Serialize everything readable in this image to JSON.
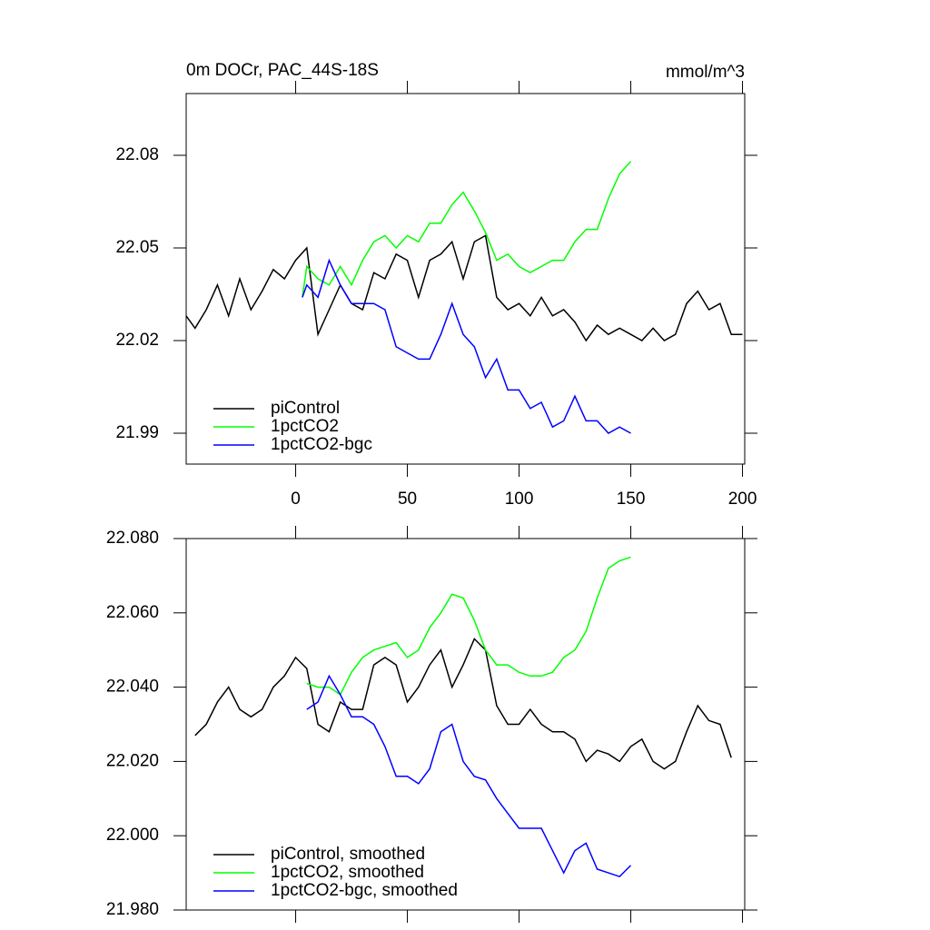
{
  "chart_data": [
    {
      "type": "line",
      "title": "0m DOCr, PAC_44S-18S",
      "units": "mmol/m^3",
      "xlim": [
        -49,
        201
      ],
      "xticks": [
        0,
        50,
        100,
        150,
        200
      ],
      "ylim": [
        21.98,
        22.1
      ],
      "yticks": [
        21.99,
        22.02,
        22.05,
        22.08
      ],
      "series": [
        {
          "name": "piControl",
          "color": "#000000",
          "x": [
            -49,
            -45,
            -40,
            -35,
            -30,
            -25,
            -20,
            -15,
            -10,
            -5,
            0,
            5,
            10,
            15,
            20,
            25,
            30,
            35,
            40,
            45,
            50,
            55,
            60,
            65,
            70,
            75,
            80,
            85,
            90,
            95,
            100,
            105,
            110,
            115,
            120,
            125,
            130,
            135,
            140,
            145,
            150,
            155,
            160,
            165,
            170,
            175,
            180,
            185,
            190,
            195,
            200
          ],
          "values": [
            22.028,
            22.024,
            22.03,
            22.038,
            22.028,
            22.04,
            22.03,
            22.036,
            22.043,
            22.04,
            22.046,
            22.05,
            22.022,
            22.03,
            22.038,
            22.032,
            22.03,
            22.042,
            22.04,
            22.048,
            22.046,
            22.034,
            22.046,
            22.048,
            22.052,
            22.04,
            22.052,
            22.054,
            22.034,
            22.03,
            22.032,
            22.028,
            22.034,
            22.028,
            22.03,
            22.026,
            22.02,
            22.025,
            22.022,
            22.024,
            22.022,
            22.02,
            22.024,
            22.02,
            22.022,
            22.032,
            22.036,
            22.03,
            22.032,
            22.022,
            22.022
          ]
        },
        {
          "name": "1pctCO2",
          "color": "#00ff00",
          "x": [
            3,
            5,
            10,
            15,
            20,
            25,
            30,
            35,
            40,
            45,
            50,
            55,
            60,
            65,
            70,
            75,
            80,
            85,
            90,
            95,
            100,
            105,
            110,
            115,
            120,
            125,
            130,
            135,
            140,
            145,
            150
          ],
          "values": [
            22.034,
            22.044,
            22.04,
            22.038,
            22.044,
            22.038,
            22.046,
            22.052,
            22.054,
            22.05,
            22.054,
            22.052,
            22.058,
            22.058,
            22.064,
            22.068,
            22.062,
            22.055,
            22.046,
            22.048,
            22.044,
            22.042,
            22.044,
            22.046,
            22.046,
            22.052,
            22.056,
            22.056,
            22.066,
            22.074,
            22.078
          ]
        },
        {
          "name": "1pctCO2-bgc",
          "color": "#0000ff",
          "x": [
            3,
            5,
            10,
            15,
            20,
            25,
            30,
            35,
            40,
            45,
            50,
            55,
            60,
            65,
            70,
            75,
            80,
            85,
            90,
            95,
            100,
            105,
            110,
            115,
            120,
            125,
            130,
            135,
            140,
            145,
            150
          ],
          "values": [
            22.034,
            22.038,
            22.034,
            22.046,
            22.038,
            22.032,
            22.032,
            22.032,
            22.03,
            22.018,
            22.016,
            22.014,
            22.014,
            22.022,
            22.032,
            22.022,
            22.018,
            22.008,
            22.014,
            22.004,
            22.004,
            21.998,
            22.0,
            21.992,
            21.994,
            22.002,
            21.994,
            21.994,
            21.99,
            21.992,
            21.99
          ]
        }
      ]
    },
    {
      "type": "line",
      "xlim": [
        -49,
        201
      ],
      "ylim": [
        21.98,
        22.08
      ],
      "yticks": [
        {
          "value": 21.98,
          "label": "21.980"
        },
        {
          "value": 22.0,
          "label": "22.000"
        },
        {
          "value": 22.02,
          "label": "22.020"
        },
        {
          "value": 22.04,
          "label": "22.040"
        },
        {
          "value": 22.06,
          "label": "22.060"
        },
        {
          "value": 22.08,
          "label": "22.080"
        }
      ],
      "series": [
        {
          "name": "piControl, smoothed",
          "color": "#000000",
          "x": [
            -45,
            -40,
            -35,
            -30,
            -25,
            -20,
            -15,
            -10,
            -5,
            0,
            5,
            10,
            15,
            20,
            25,
            30,
            35,
            40,
            45,
            50,
            55,
            60,
            65,
            70,
            75,
            80,
            85,
            90,
            95,
            100,
            105,
            110,
            115,
            120,
            125,
            130,
            135,
            140,
            145,
            150,
            155,
            160,
            165,
            170,
            175,
            180,
            185,
            190,
            195
          ],
          "values": [
            22.027,
            22.03,
            22.036,
            22.04,
            22.034,
            22.032,
            22.034,
            22.04,
            22.043,
            22.048,
            22.045,
            22.03,
            22.028,
            22.036,
            22.034,
            22.034,
            22.046,
            22.048,
            22.046,
            22.036,
            22.04,
            22.046,
            22.05,
            22.04,
            22.046,
            22.053,
            22.05,
            22.035,
            22.03,
            22.03,
            22.034,
            22.03,
            22.028,
            22.028,
            22.026,
            22.02,
            22.023,
            22.022,
            22.02,
            22.024,
            22.026,
            22.02,
            22.018,
            22.02,
            22.028,
            22.035,
            22.031,
            22.03,
            22.021
          ]
        },
        {
          "name": "1pctCO2, smoothed",
          "color": "#00ff00",
          "x": [
            5,
            10,
            15,
            20,
            25,
            30,
            35,
            40,
            45,
            50,
            55,
            60,
            65,
            70,
            75,
            80,
            85,
            90,
            95,
            100,
            105,
            110,
            115,
            120,
            125,
            130,
            135,
            140,
            145,
            150
          ],
          "values": [
            22.041,
            22.04,
            22.04,
            22.038,
            22.044,
            22.048,
            22.05,
            22.051,
            22.052,
            22.048,
            22.05,
            22.056,
            22.06,
            22.065,
            22.064,
            22.058,
            22.05,
            22.046,
            22.046,
            22.044,
            22.043,
            22.043,
            22.044,
            22.048,
            22.05,
            22.055,
            22.064,
            22.072,
            22.074,
            22.075
          ]
        },
        {
          "name": "1pctCO2-bgc, smoothed",
          "color": "#0000ff",
          "x": [
            5,
            10,
            15,
            20,
            25,
            30,
            35,
            40,
            45,
            50,
            55,
            60,
            65,
            70,
            75,
            80,
            85,
            90,
            95,
            100,
            105,
            110,
            115,
            120,
            125,
            130,
            135,
            140,
            145,
            150
          ],
          "values": [
            22.034,
            22.036,
            22.043,
            22.038,
            22.032,
            22.032,
            22.03,
            22.024,
            22.016,
            22.016,
            22.014,
            22.018,
            22.028,
            22.03,
            22.02,
            22.016,
            22.015,
            22.01,
            22.006,
            22.002,
            22.002,
            22.002,
            21.996,
            21.99,
            21.996,
            21.998,
            21.991,
            21.99,
            21.989,
            21.992
          ]
        }
      ]
    }
  ]
}
